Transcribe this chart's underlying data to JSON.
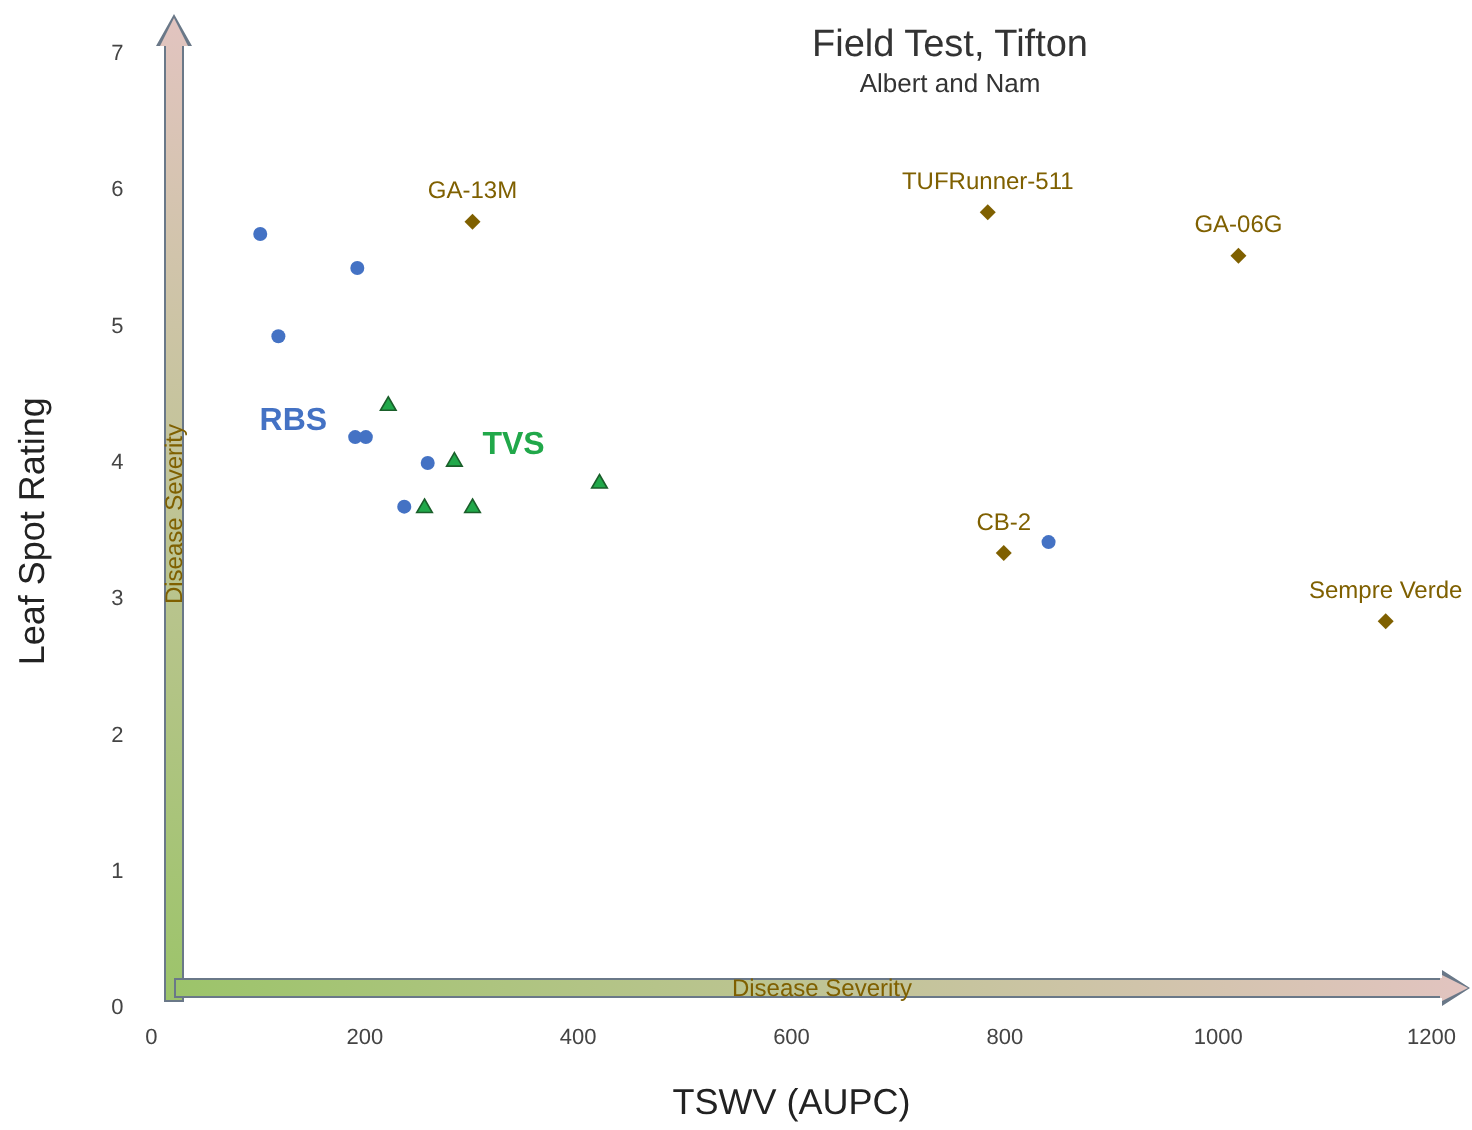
{
  "chart_data": {
    "type": "scatter",
    "title": "Field Test, Tifton",
    "subtitle": "Albert and Nam",
    "xlabel": "TSWV (AUPC)",
    "ylabel": "Leaf Spot Rating",
    "xlim": [
      0,
      1200
    ],
    "xticks": [
      0,
      200,
      400,
      600,
      800,
      1000,
      1200
    ],
    "ylim": [
      0,
      7
    ],
    "yticks": [
      0,
      1,
      2,
      3,
      4,
      5,
      6,
      7
    ],
    "grid": false,
    "legend": false,
    "series": [
      {
        "name": "RBS",
        "color": "#4472c4",
        "marker": "circle",
        "x": [
          102,
          193,
          119,
          191,
          201,
          259,
          237,
          841
        ],
        "values": [
          5.68,
          5.43,
          4.93,
          4.19,
          4.19,
          4.0,
          3.68,
          3.42
        ]
      },
      {
        "name": "TVS",
        "color": "#21a84a",
        "marker": "triangle",
        "x": [
          222,
          284,
          256,
          301,
          420
        ],
        "values": [
          4.42,
          4.01,
          3.67,
          3.67,
          3.85
        ]
      },
      {
        "color": "#7f6000",
        "marker": "diamond",
        "x": [
          301,
          784,
          1019,
          799,
          1157
        ],
        "values": [
          5.77,
          5.84,
          5.52,
          3.34,
          2.84
        ]
      }
    ],
    "annotations": [
      {
        "text": "GA-13M",
        "x": 301,
        "y": 5.77
      },
      {
        "text": "TUFRunner-511",
        "x": 784,
        "y": 5.84
      },
      {
        "text": "GA-06G",
        "x": 1019,
        "y": 5.52
      },
      {
        "text": "CB-2",
        "x": 799,
        "y": 3.34
      },
      {
        "text": "Sempre Verde",
        "x": 1157,
        "y": 2.84
      },
      "Disease Severity",
      "Disease Severity"
    ]
  }
}
